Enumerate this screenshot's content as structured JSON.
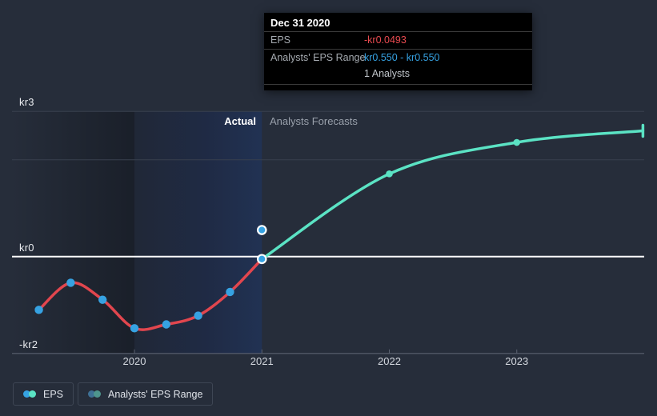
{
  "colors": {
    "background": "#262d3a",
    "eps_line": "#e2464e",
    "forecast_line": "#5be3c4",
    "marker_blue": "#36a2e2",
    "marker_ring": "#ffffff",
    "zero_line": "#ffffff",
    "gridline": "#39404e",
    "axis_line": "#5a6170",
    "today_line_top": "#2b4064",
    "today_line_bottom": "#4272b4",
    "band_left": "#202837",
    "band_mid": "#1f2a44",
    "band_right": "#213253",
    "tooltip_bg": "#000000",
    "tooltip_red": "#e84a4f",
    "tooltip_blue": "#36a2e2",
    "legend_blue_muted": "#3e7095",
    "legend_teal_muted": "#4e958d"
  },
  "chart_data": {
    "type": "line",
    "title": "EPS actual vs analysts forecasts",
    "currency": "kr",
    "x_ticks": [
      "2020",
      "2021",
      "2022",
      "2023"
    ],
    "x_tick_years": [
      2020,
      2021,
      2022,
      2023
    ],
    "y_axis_labels": [
      {
        "text": "kr3",
        "value": 3
      },
      {
        "text": "kr0",
        "value": 0
      },
      {
        "text": "-kr2",
        "value": -2
      }
    ],
    "grid_values": [
      3,
      2
    ],
    "zero_value": 0,
    "axis_value": -2,
    "ylim": [
      -2,
      3.4
    ],
    "grid": "horizontal",
    "legend_position": "bottom-left",
    "series": [
      {
        "name": "EPS (actual)",
        "color_key": "eps_line",
        "marker_color_key": "marker_blue",
        "markers": "all",
        "x": [
          2019.25,
          2019.5,
          2019.75,
          2020,
          2020.25,
          2020.5,
          2020.75,
          2021
        ],
        "y": [
          -1.1,
          -0.54,
          -0.89,
          -1.48,
          -1.4,
          -1.22,
          -0.73,
          -0.0493
        ]
      },
      {
        "name": "EPS (analysts forecast)",
        "color_key": "forecast_line",
        "marker_color_key": "forecast_line",
        "markers": "inner",
        "end_cap": true,
        "x": [
          2021,
          2022,
          2023,
          2023.99
        ],
        "y": [
          -0.0493,
          1.71,
          2.36,
          2.6
        ]
      }
    ],
    "highlight_band": {
      "from": 2020,
      "to": 2021
    },
    "hover_points": [
      {
        "x": 2021,
        "y": -0.0493
      },
      {
        "x": 2021,
        "y": 0.55
      }
    ]
  },
  "annotations": {
    "actual": "Actual",
    "forecasts": "Analysts Forecasts"
  },
  "tooltip": {
    "date": "Dec 31 2020",
    "eps_label": "EPS",
    "eps_value": "-kr0.0493",
    "range_label": "Analysts' EPS Range",
    "range_value": "kr0.550 - kr0.550",
    "analysts_count": "1 Analysts"
  },
  "legend": {
    "eps_label": "EPS",
    "range_label": "Analysts' EPS Range"
  }
}
